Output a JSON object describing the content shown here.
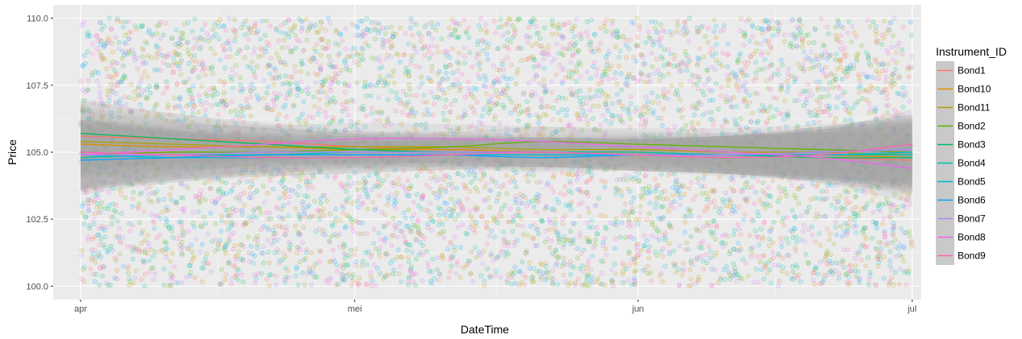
{
  "chart_data": {
    "type": "scatter",
    "title": "",
    "xlabel": "DateTime",
    "ylabel": "Price",
    "x_ticks": [
      "apr",
      "mei",
      "jun",
      "jul"
    ],
    "x_range": [
      "2017-03-29",
      "2017-07-02"
    ],
    "x_tick_dates": [
      "2017-04-01",
      "2017-05-01",
      "2017-06-01",
      "2017-07-01"
    ],
    "y_ticks": [
      "100.0",
      "102.5",
      "105.0",
      "107.5",
      "110.0"
    ],
    "y_tick_values": [
      100.0,
      102.5,
      105.0,
      107.5,
      110.0
    ],
    "ylim": [
      99.5,
      110.5
    ],
    "grid": true,
    "background": "#EBEBEB",
    "point_count_per_series": 480,
    "points_distribution": "approximately uniform between 100 and 110 across the full date range, drawn semi-transparent",
    "smooth_band_color": "#999999",
    "legend": {
      "title": "Instrument_ID",
      "position": "right"
    },
    "series": [
      {
        "name": "Bond1",
        "color": "#F8766D",
        "smooth": [
          105.6,
          105.5,
          105.4,
          105.2,
          105.1,
          105.0,
          104.9,
          104.9,
          104.8,
          104.7
        ]
      },
      {
        "name": "Bond10",
        "color": "#DB8E00",
        "smooth": [
          105.3,
          105.2,
          105.2,
          105.1,
          105.1,
          105.0,
          105.0,
          104.9,
          104.9,
          104.8
        ]
      },
      {
        "name": "Bond11",
        "color": "#AEA200",
        "smooth": [
          105.4,
          105.3,
          105.2,
          105.2,
          105.2,
          105.1,
          105.1,
          105.0,
          105.0,
          104.9
        ]
      },
      {
        "name": "Bond2",
        "color": "#64B200",
        "smooth": [
          104.9,
          105.0,
          105.0,
          105.1,
          105.2,
          105.4,
          105.3,
          105.2,
          105.1,
          105.0
        ]
      },
      {
        "name": "Bond3",
        "color": "#00BD5C",
        "smooth": [
          105.7,
          105.5,
          105.3,
          105.1,
          105.0,
          105.0,
          104.9,
          104.9,
          104.8,
          104.8
        ]
      },
      {
        "name": "Bond4",
        "color": "#00C1A7",
        "smooth": [
          104.8,
          104.9,
          104.9,
          105.0,
          105.0,
          105.0,
          105.0,
          104.9,
          104.9,
          104.9
        ]
      },
      {
        "name": "Bond5",
        "color": "#00BADE",
        "smooth": [
          104.9,
          104.8,
          104.8,
          104.8,
          104.9,
          104.9,
          104.9,
          104.9,
          104.9,
          105.0
        ]
      },
      {
        "name": "Bond6",
        "color": "#00A6FF",
        "smooth": [
          104.7,
          104.8,
          104.9,
          104.9,
          104.9,
          104.8,
          104.9,
          104.9,
          105.0,
          105.1
        ]
      },
      {
        "name": "Bond7",
        "color": "#B385FF",
        "smooth": [
          104.9,
          104.9,
          105.0,
          105.0,
          105.0,
          105.0,
          104.9,
          104.9,
          105.0,
          105.1
        ]
      },
      {
        "name": "Bond8",
        "color": "#EF67EB",
        "smooth": [
          104.9,
          105.1,
          105.3,
          105.5,
          105.5,
          105.4,
          105.2,
          105.0,
          104.8,
          104.4
        ]
      },
      {
        "name": "Bond9",
        "color": "#FF63B6",
        "smooth": [
          105.0,
          104.9,
          104.8,
          104.8,
          104.9,
          105.0,
          104.9,
          104.8,
          104.9,
          105.3
        ]
      }
    ]
  }
}
